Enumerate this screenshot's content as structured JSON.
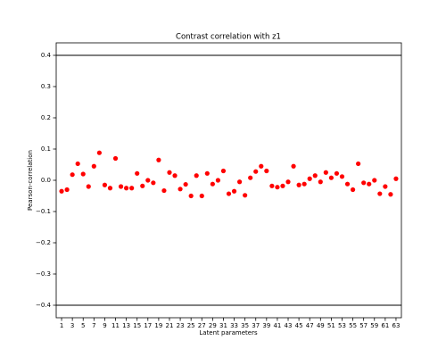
{
  "chart_data": {
    "type": "scatter",
    "title": "Contrast correlation with z1",
    "xlabel": "Latent parameters",
    "ylabel": "Pearson-correlation",
    "color": "#ff0000",
    "x": [
      1,
      2,
      3,
      4,
      5,
      6,
      7,
      8,
      9,
      10,
      11,
      12,
      13,
      14,
      15,
      16,
      17,
      18,
      19,
      20,
      21,
      22,
      23,
      24,
      25,
      26,
      27,
      28,
      29,
      30,
      31,
      32,
      33,
      34,
      35,
      36,
      37,
      38,
      39,
      40,
      41,
      42,
      43,
      44,
      45,
      46,
      47,
      48,
      49,
      50,
      51,
      52,
      53,
      54,
      55,
      56,
      57,
      58,
      59,
      60,
      61,
      62,
      63
    ],
    "values": [
      -0.035,
      -0.03,
      0.018,
      0.053,
      0.02,
      -0.02,
      0.045,
      0.088,
      -0.015,
      -0.025,
      0.07,
      -0.02,
      -0.025,
      -0.025,
      0.022,
      -0.018,
      0.0,
      -0.008,
      0.065,
      -0.033,
      0.025,
      0.015,
      -0.028,
      -0.013,
      -0.05,
      0.015,
      -0.05,
      0.022,
      -0.012,
      0.0,
      0.03,
      -0.043,
      -0.035,
      -0.005,
      -0.048,
      0.008,
      0.028,
      0.045,
      0.03,
      -0.018,
      -0.022,
      -0.018,
      -0.005,
      0.045,
      -0.015,
      -0.012,
      0.005,
      0.015,
      -0.005,
      0.025,
      0.008,
      0.022,
      0.012,
      -0.012,
      -0.03,
      0.053,
      -0.008,
      -0.012,
      0.0,
      -0.043,
      -0.02,
      -0.045,
      0.005
    ],
    "xlim": [
      0,
      64
    ],
    "ylim": [
      -0.44,
      0.44
    ],
    "xticks": [
      1,
      3,
      5,
      7,
      9,
      11,
      13,
      15,
      17,
      19,
      21,
      23,
      25,
      27,
      29,
      31,
      33,
      35,
      37,
      39,
      41,
      43,
      45,
      47,
      49,
      51,
      53,
      55,
      57,
      59,
      61,
      63
    ],
    "yticks": [
      {
        "value": -0.4,
        "label": "−0.4"
      },
      {
        "value": -0.3,
        "label": "−0.3"
      },
      {
        "value": -0.2,
        "label": "−0.2"
      },
      {
        "value": -0.1,
        "label": "−0.1"
      },
      {
        "value": 0,
        "label": "0.0"
      },
      0.1,
      0.2,
      0.3,
      0.4
    ],
    "hlines": [
      0.4,
      -0.4
    ],
    "hline_color": "#000000"
  }
}
